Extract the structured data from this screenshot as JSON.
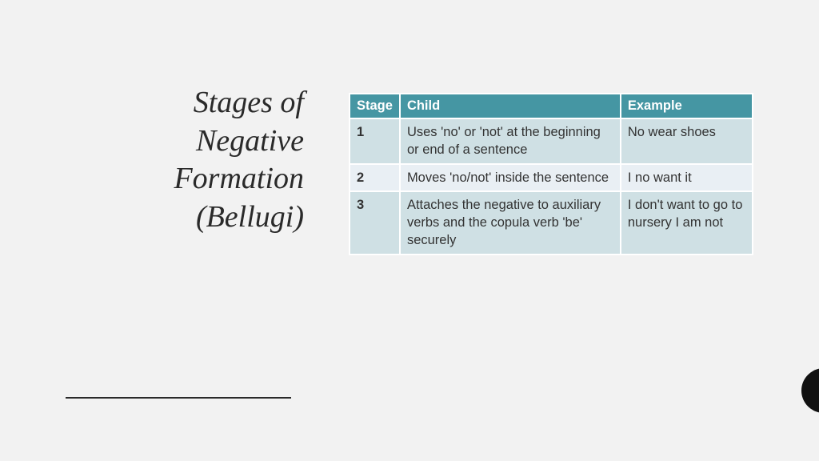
{
  "slide": {
    "title": {
      "line1": "Stages of",
      "line2": "Negative",
      "line3": "Formation",
      "line4": "(Bellugi)"
    },
    "table": {
      "columns": [
        "Stage",
        "Child",
        "Example"
      ],
      "rows": [
        {
          "stage": "1",
          "child": "Uses 'no' or 'not' at the beginning or end of a sentence",
          "example": "No wear shoes"
        },
        {
          "stage": "2",
          "child": "Moves 'no/not' inside the sentence",
          "example": "I no want it"
        },
        {
          "stage": "3",
          "child": "Attaches the negative to auxiliary verbs and the copula verb 'be' securely",
          "example": "I don't want to go to nursery\nI am not"
        }
      ],
      "header_bg": "#4596a3",
      "header_fg": "#ffffff",
      "row_odd_bg": "#cfe0e4",
      "row_even_bg": "#e9eff4",
      "border_color": "#ffffff",
      "font_size": 16.5
    },
    "background_color": "#f2f2f2",
    "rule_color": "#2a2a2a",
    "corner_circle_color": "#111111"
  }
}
